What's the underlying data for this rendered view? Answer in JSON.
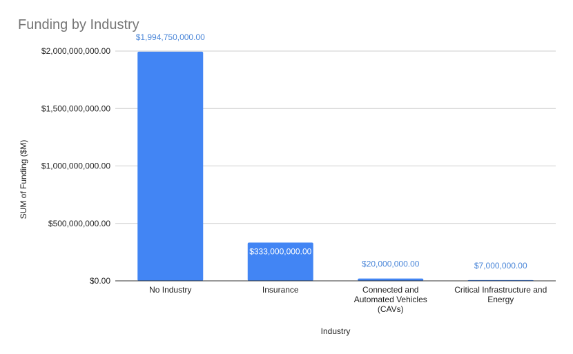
{
  "chart_data": {
    "type": "bar",
    "title": "Funding by Industry",
    "xlabel": "Industry",
    "ylabel": "SUM of Funding ($M)",
    "categories": [
      "No Industry",
      "Insurance",
      "Connected and Automated Vehicles (CAVs)",
      "Critical Infrastructure and Energy"
    ],
    "category_lines": [
      [
        "No Industry"
      ],
      [
        "Insurance"
      ],
      [
        "Connected and",
        "Automated Vehicles",
        "(CAVs)"
      ],
      [
        "Critical Infrastructure and",
        "Energy"
      ]
    ],
    "values": [
      1994750000,
      333000000,
      20000000,
      7000000
    ],
    "data_labels": [
      "$1,994,750,000.00",
      "$333,000,000.00",
      "$20,000,000.00",
      "$7,000,000.00"
    ],
    "y_ticks": [
      0,
      500000000,
      1000000000,
      1500000000,
      2000000000
    ],
    "y_tick_labels": [
      "$0.00",
      "$500,000,000.00",
      "$1,000,000,000.00",
      "$1,500,000,000.00",
      "$2,000,000,000.00"
    ],
    "ylim": [
      0,
      2000000000
    ],
    "grid": true,
    "legend": "none",
    "colors": {
      "bar": "#4285f4",
      "data_label": "#4a86d8",
      "data_label_inside": "#ffffff",
      "grid": "#cccccc",
      "axis": "#333333",
      "title": "#757575"
    }
  }
}
